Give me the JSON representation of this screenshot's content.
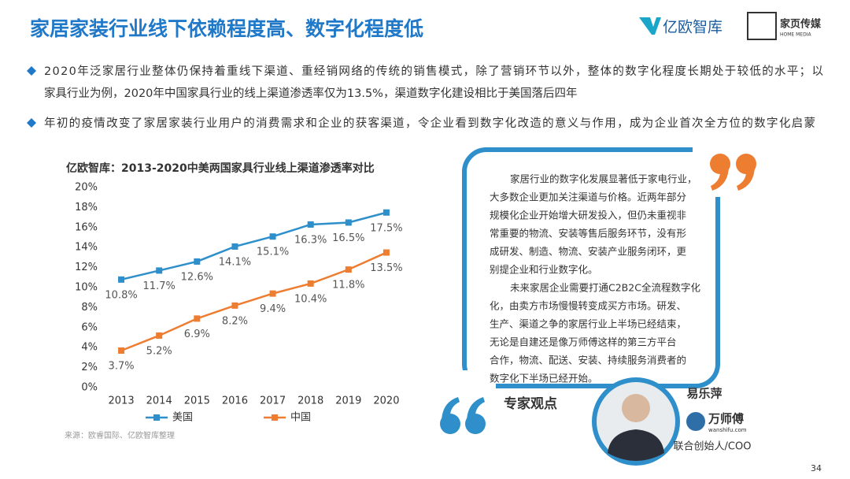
{
  "header": {
    "title": "家居家装行业线下依赖程度高、数字化程度低",
    "logo_1": "亿欧智库",
    "logo_2": "家页传媒",
    "logo_2_sub": "HOME MEDIA"
  },
  "bullets": [
    [
      "2020年泛家居行业整体仍保持着重线下渠道、重经销网络的传统的销售模式，除了营销环节以外，整体的数字化程度长期处于较低的水平；以",
      "家具行业为例，2020年中国家具行业的线上渠道渗透率仅为13.5%，渠道数字化建设相比于美国落后四年"
    ],
    [
      "年初的疫情改变了家居家装行业用户的消费需求和企业的获客渠道，令企业看到数字化改造的意义与作用，成为企业首次全方位的数字化启蒙"
    ]
  ],
  "chart_data": {
    "type": "line",
    "title": "亿欧智库：2013-2020中美两国家具行业线上渠道渗透率对比",
    "categories": [
      "2013",
      "2014",
      "2015",
      "2016",
      "2017",
      "2018",
      "2019",
      "2020"
    ],
    "series": [
      {
        "name": "美国",
        "color": "#2f8fcb",
        "values": [
          10.8,
          11.7,
          12.6,
          14.1,
          15.1,
          16.3,
          16.5,
          17.5
        ],
        "value_labels": [
          "10.8%",
          "11.7%",
          "12.6%",
          "14.1%",
          "15.1%",
          "16.3%",
          "16.5%",
          "17.5%"
        ]
      },
      {
        "name": "中国",
        "color": "#ed7d31",
        "values": [
          3.7,
          5.2,
          6.9,
          8.2,
          9.4,
          10.4,
          11.8,
          13.5
        ],
        "value_labels": [
          "3.7%",
          "5.2%",
          "6.9%",
          "8.2%",
          "9.4%",
          "10.4%",
          "11.8%",
          "13.5%"
        ]
      }
    ],
    "ylim": [
      0,
      20
    ],
    "yticks": [
      {
        "value": 0,
        "label": "0%"
      },
      {
        "value": 2,
        "label": "2%"
      },
      {
        "value": 4,
        "label": "4%"
      },
      {
        "value": 6,
        "label": "6%"
      },
      {
        "value": 8,
        "label": "8%"
      },
      {
        "value": 10,
        "label": "10%"
      },
      {
        "value": 12,
        "label": "12%"
      },
      {
        "value": 14,
        "label": "14%"
      },
      {
        "value": 16,
        "label": "16%"
      },
      {
        "value": 18,
        "label": "18%"
      },
      {
        "value": 20,
        "label": "20%"
      }
    ],
    "legend": "bottom",
    "grid": false
  },
  "source": "来源：欧睿国际、亿欧智库整理",
  "quote": {
    "paragraphs": [
      [
        "家居行业的数字化发展显著低于家电行业，",
        "大多数企业更加关注渠道与价格。近两年部分",
        "规模化企业开始增大研发投入，但仍未重视非",
        "常重要的物流、安装等售后服务环节，没有形",
        "成研发、制造、物流、安装产业服务闭环，更",
        "别提企业和行业数字化。"
      ],
      [
        "未来家居企业需要打通C2B2C全流程数字化",
        "化，由卖方市场慢慢转变成买方市场。研发、",
        "生产、渠道之争的家居行业上半场已经结束，",
        "无论是自建还是像万师傅这样的第三方平台",
        "合作，物流、配送、安装、持续服务消费者的",
        "数字化下半场已经开始。"
      ]
    ],
    "label": "专家观点"
  },
  "expert": {
    "name": "易乐萍",
    "company": "万师傅",
    "company_url": "wanshifu.com",
    "role": "联合创始人/COO"
  },
  "page_number": "34"
}
